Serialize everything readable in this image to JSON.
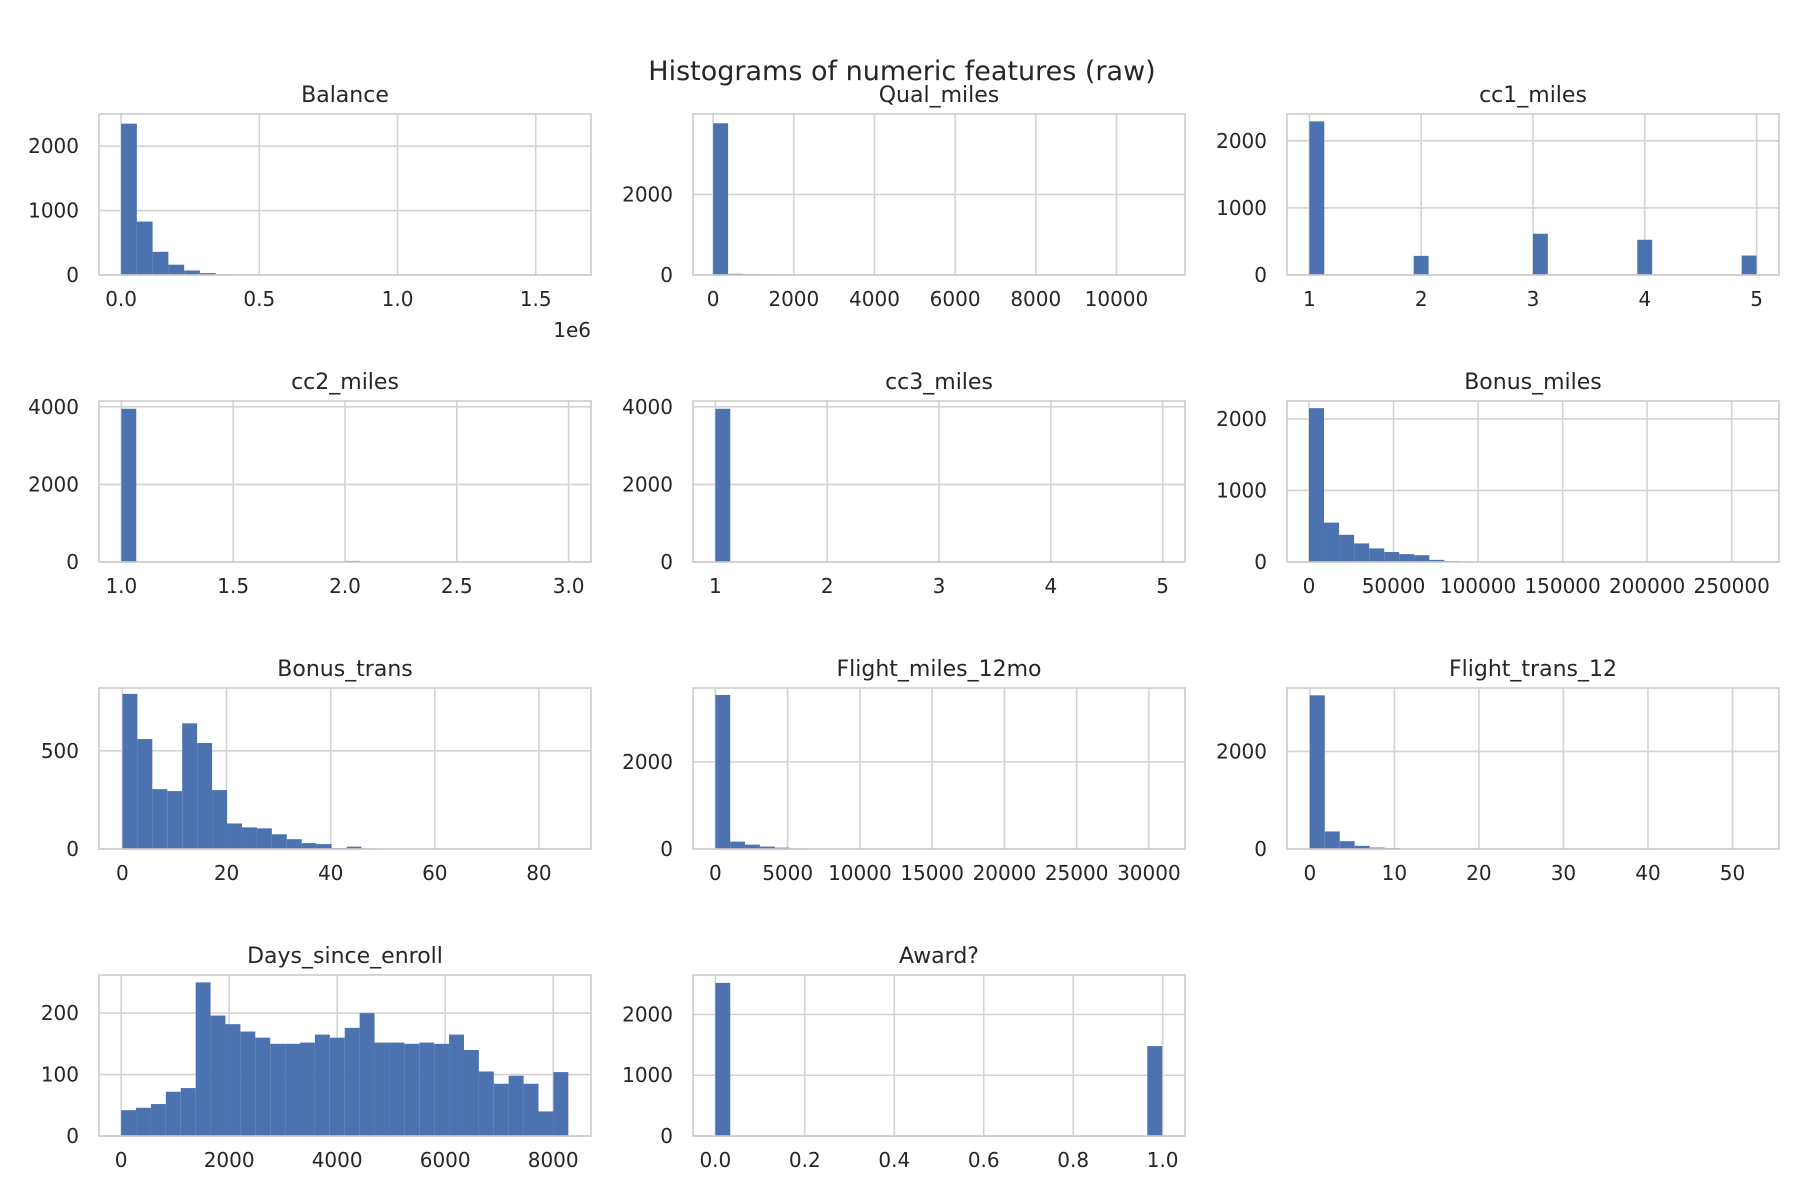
{
  "figure": {
    "title": "Histograms of numeric features (raw)",
    "bar_color": "#4c72b0",
    "grid_color": "#d3d3d3",
    "frame_color": "#cccccc",
    "background": "#ffffff"
  },
  "chart_data": [
    {
      "type": "bar",
      "title": "Balance",
      "xlim": [
        -80000,
        1700000
      ],
      "ylim": [
        0,
        2500
      ],
      "xticks": [
        0,
        500000,
        1000000,
        1500000
      ],
      "xtick_labels": [
        "0.0",
        "0.5",
        "1.0",
        "1.5"
      ],
      "yticks": [
        0,
        1000,
        2000
      ],
      "ytick_labels": [
        "0",
        "1000",
        "2000"
      ],
      "offset_label": "1e6",
      "bin_start": 0,
      "bin_width": 57000,
      "values": [
        2350,
        830,
        360,
        160,
        70,
        30,
        12,
        8,
        5,
        4,
        3,
        2,
        2,
        1,
        1,
        1,
        1,
        1,
        0,
        0,
        0,
        0,
        0,
        0,
        0,
        0,
        0,
        0,
        0,
        1
      ]
    },
    {
      "type": "bar",
      "title": "Qual_miles",
      "xlim": [
        -500,
        11700
      ],
      "ylim": [
        0,
        4000
      ],
      "xticks": [
        0,
        2000,
        4000,
        6000,
        8000,
        10000
      ],
      "xtick_labels": [
        "0",
        "2000",
        "4000",
        "6000",
        "8000",
        "10000"
      ],
      "yticks": [
        0,
        2000
      ],
      "ytick_labels": [
        "0",
        "2000"
      ],
      "bin_start": 0,
      "bin_width": 370,
      "values": [
        3770,
        30,
        25,
        20,
        15,
        12,
        10,
        8,
        6,
        5,
        4,
        3,
        3,
        2,
        2,
        2,
        1,
        1,
        1,
        1,
        1,
        1,
        1,
        0,
        0,
        0,
        0,
        0,
        0,
        1
      ]
    },
    {
      "type": "bar",
      "title": "cc1_miles",
      "xlim": [
        0.8,
        5.2
      ],
      "ylim": [
        0,
        2400
      ],
      "xticks": [
        1,
        2,
        3,
        4,
        5
      ],
      "xtick_labels": [
        "1",
        "2",
        "3",
        "4",
        "5"
      ],
      "yticks": [
        0,
        1000,
        2000
      ],
      "ytick_labels": [
        "0",
        "1000",
        "2000"
      ],
      "bin_start": 1,
      "bin_width": 0.1333,
      "values": [
        2290,
        0,
        0,
        0,
        0,
        0,
        0,
        285,
        0,
        0,
        0,
        0,
        0,
        0,
        0,
        615,
        0,
        0,
        0,
        0,
        0,
        0,
        525,
        0,
        0,
        0,
        0,
        0,
        0,
        290
      ]
    },
    {
      "type": "bar",
      "title": "cc2_miles",
      "xlim": [
        0.9,
        3.1
      ],
      "ylim": [
        0,
        4150
      ],
      "xticks": [
        1.0,
        1.5,
        2.0,
        2.5,
        3.0
      ],
      "xtick_labels": [
        "1.0",
        "1.5",
        "2.0",
        "2.5",
        "3.0"
      ],
      "yticks": [
        0,
        2000,
        4000
      ],
      "ytick_labels": [
        "0",
        "2000",
        "4000"
      ],
      "bin_start": 1,
      "bin_width": 0.0667,
      "values": [
        3950,
        0,
        0,
        0,
        0,
        0,
        0,
        0,
        0,
        0,
        0,
        0,
        0,
        0,
        0,
        28,
        0,
        0,
        0,
        0,
        0,
        0,
        0,
        0,
        0,
        0,
        0,
        0,
        0,
        1
      ]
    },
    {
      "type": "bar",
      "title": "cc3_miles",
      "xlim": [
        0.8,
        5.2
      ],
      "ylim": [
        0,
        4150
      ],
      "xticks": [
        1,
        2,
        3,
        4,
        5
      ],
      "xtick_labels": [
        "1",
        "2",
        "3",
        "4",
        "5"
      ],
      "yticks": [
        0,
        2000,
        4000
      ],
      "ytick_labels": [
        "0",
        "2000",
        "4000"
      ],
      "bin_start": 1,
      "bin_width": 0.1333,
      "values": [
        3950,
        0,
        0,
        0,
        0,
        0,
        0,
        3,
        0,
        0,
        0,
        0,
        0,
        0,
        0,
        4,
        0,
        0,
        0,
        0,
        0,
        0,
        6,
        0,
        0,
        0,
        0,
        0,
        0,
        2
      ]
    },
    {
      "type": "bar",
      "title": "Bonus_miles",
      "xlim": [
        -13000,
        278000
      ],
      "ylim": [
        0,
        2250
      ],
      "xticks": [
        0,
        50000,
        100000,
        150000,
        200000,
        250000
      ],
      "xtick_labels": [
        "0",
        "50000",
        "100000",
        "150000",
        "200000",
        "250000"
      ],
      "yticks": [
        0,
        1000,
        2000
      ],
      "ytick_labels": [
        "0",
        "1000",
        "2000"
      ],
      "bin_start": 0,
      "bin_width": 8900,
      "values": [
        2150,
        550,
        380,
        260,
        190,
        140,
        110,
        95,
        30,
        12,
        8,
        5,
        3,
        2,
        2,
        1,
        1,
        1,
        1,
        0,
        0,
        0,
        0,
        0,
        0,
        0,
        0,
        0,
        0,
        1
      ]
    },
    {
      "type": "bar",
      "title": "Bonus_trans",
      "xlim": [
        -4.5,
        90
      ],
      "ylim": [
        0,
        820
      ],
      "xticks": [
        0,
        20,
        40,
        60,
        80
      ],
      "xtick_labels": [
        "0",
        "20",
        "40",
        "60",
        "80"
      ],
      "yticks": [
        0,
        500
      ],
      "ytick_labels": [
        "0",
        "500"
      ],
      "bin_start": 0,
      "bin_width": 2.87,
      "values": [
        790,
        560,
        305,
        295,
        640,
        540,
        300,
        130,
        110,
        105,
        75,
        50,
        30,
        25,
        5,
        12,
        3,
        2,
        1,
        1,
        1,
        1,
        0,
        0,
        0,
        0,
        0,
        0,
        0,
        1
      ]
    },
    {
      "type": "bar",
      "title": "Flight_miles_12mo",
      "xlim": [
        -1550,
        32500
      ],
      "ylim": [
        0,
        3700
      ],
      "xticks": [
        0,
        5000,
        10000,
        15000,
        20000,
        25000,
        30000
      ],
      "xtick_labels": [
        "0",
        "5000",
        "10000",
        "15000",
        "20000",
        "25000",
        "30000"
      ],
      "yticks": [
        0,
        2000
      ],
      "ytick_labels": [
        "0",
        "2000"
      ],
      "bin_start": 0,
      "bin_width": 1027,
      "values": [
        3540,
        170,
        100,
        55,
        30,
        15,
        10,
        6,
        4,
        3,
        2,
        2,
        1,
        1,
        1,
        1,
        1,
        0,
        0,
        0,
        0,
        0,
        0,
        0,
        0,
        0,
        0,
        0,
        0,
        1
      ]
    },
    {
      "type": "bar",
      "title": "Flight_trans_12",
      "xlim": [
        -2.7,
        55.5
      ],
      "ylim": [
        0,
        3300
      ],
      "xticks": [
        0,
        10,
        20,
        30,
        40,
        50
      ],
      "xtick_labels": [
        "0",
        "10",
        "20",
        "30",
        "40",
        "50"
      ],
      "yticks": [
        0,
        2000
      ],
      "ytick_labels": [
        "0",
        "2000"
      ],
      "bin_start": 0,
      "bin_width": 1.77,
      "values": [
        3150,
        360,
        160,
        65,
        30,
        18,
        10,
        6,
        4,
        3,
        2,
        2,
        1,
        1,
        1,
        1,
        0,
        0,
        0,
        0,
        0,
        0,
        0,
        0,
        0,
        0,
        0,
        0,
        0,
        1
      ]
    },
    {
      "type": "bar",
      "title": "Days_since_enroll",
      "xlim": [
        -410,
        8700
      ],
      "ylim": [
        0,
        262
      ],
      "xticks": [
        0,
        2000,
        4000,
        6000,
        8000
      ],
      "xtick_labels": [
        "0",
        "2000",
        "4000",
        "6000",
        "8000"
      ],
      "yticks": [
        0,
        100,
        200
      ],
      "ytick_labels": [
        "0",
        "100",
        "200"
      ],
      "bin_start": 0,
      "bin_width": 276,
      "values": [
        42,
        46,
        52,
        72,
        78,
        250,
        196,
        182,
        170,
        160,
        150,
        150,
        152,
        165,
        160,
        176,
        200,
        152,
        152,
        150,
        152,
        150,
        165,
        140,
        105,
        85,
        98,
        85,
        40,
        104
      ]
    },
    {
      "type": "bar",
      "title": "Award?",
      "xlim": [
        -0.05,
        1.05
      ],
      "ylim": [
        0,
        2650
      ],
      "xticks": [
        0.0,
        0.2,
        0.4,
        0.6,
        0.8,
        1.0
      ],
      "xtick_labels": [
        "0.0",
        "0.2",
        "0.4",
        "0.6",
        "0.8",
        "1.0"
      ],
      "yticks": [
        0,
        1000,
        2000
      ],
      "ytick_labels": [
        "0",
        "1000",
        "2000"
      ],
      "bin_start": 0,
      "bin_width": 0.0333,
      "values": [
        2520,
        0,
        0,
        0,
        0,
        0,
        0,
        0,
        0,
        0,
        0,
        0,
        0,
        0,
        0,
        0,
        0,
        0,
        0,
        0,
        0,
        0,
        0,
        0,
        0,
        0,
        0,
        0,
        0,
        1480
      ]
    }
  ]
}
